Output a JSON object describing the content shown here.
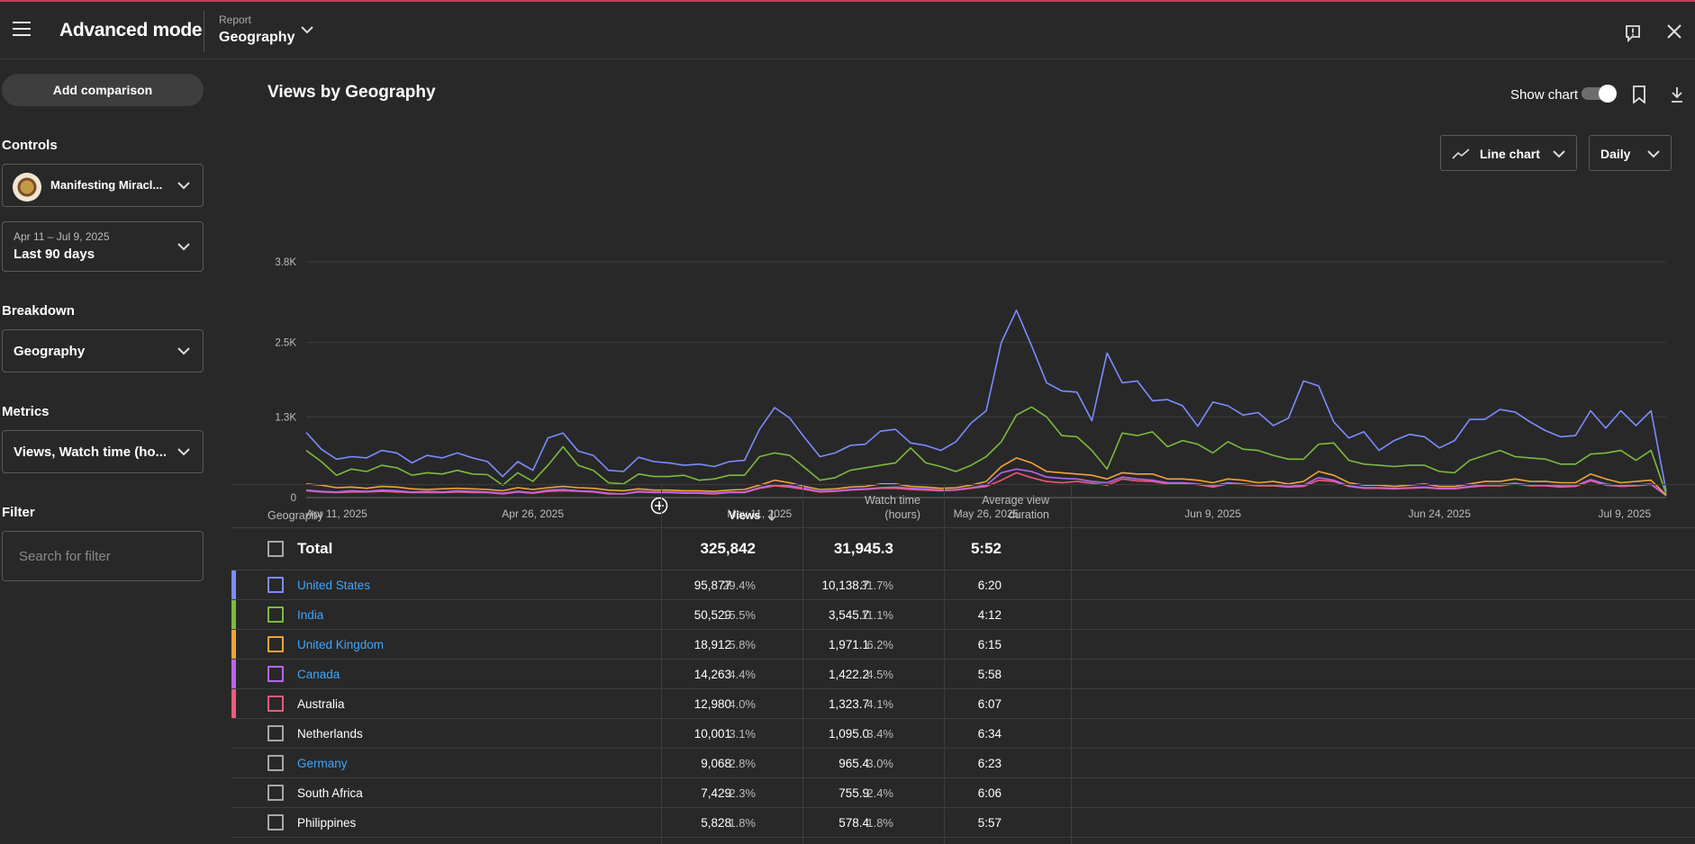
{
  "app": {
    "title": "Advanced mode",
    "report_caption": "Report",
    "report_value": "Geography"
  },
  "sidebar": {
    "add_comparison": "Add comparison",
    "controls_label": "Controls",
    "channel_name": "Manifesting Miracl...",
    "date_range_small": "Apr 11 – Jul 9, 2025",
    "date_range": "Last 90 days",
    "breakdown_label": "Breakdown",
    "breakdown_value": "Geography",
    "metrics_label": "Metrics",
    "metrics_value": "Views, Watch time (ho...",
    "filter_label": "Filter",
    "filter_placeholder": "Search for filter"
  },
  "main": {
    "title": "Views by Geography",
    "show_chart_label": "Show chart",
    "chart_type": "Line chart",
    "interval": "Daily"
  },
  "chart_data": {
    "type": "line",
    "y_ticks": [
      "3.8K",
      "2.5K",
      "1.3K",
      "0"
    ],
    "x_tick_labels": [
      "Apr 11, 2025",
      "Apr 26, 2025",
      "May 11, 2025",
      "May 26, 2025",
      "Jun 9, 2025",
      "Jun 24, 2025",
      "Jul 9, 2025"
    ],
    "ylim": [
      0,
      3800
    ],
    "grid": true,
    "series": [
      {
        "color": "#7b8cff",
        "values": [
          1050,
          780,
          620,
          660,
          640,
          760,
          720,
          560,
          680,
          640,
          720,
          640,
          580,
          340,
          580,
          440,
          960,
          1040,
          750,
          680,
          440,
          420,
          650,
          580,
          560,
          520,
          540,
          500,
          580,
          600,
          1100,
          1450,
          1280,
          960,
          660,
          720,
          840,
          860,
          1070,
          1100,
          880,
          840,
          760,
          900,
          1200,
          1400,
          2500,
          3020,
          2450,
          1850,
          1720,
          1700,
          1240,
          2330,
          1850,
          1880,
          1560,
          1580,
          1480,
          1150,
          1540,
          1480,
          1330,
          1370,
          1160,
          1280,
          1880,
          1800,
          1220,
          960,
          1060,
          760,
          920,
          1020,
          980,
          800,
          920,
          1260,
          1260,
          1420,
          1380,
          1220,
          1080,
          980,
          1000,
          1400,
          1120,
          1400,
          1160,
          1400,
          100
        ]
      },
      {
        "color": "#7cba3c",
        "values": [
          760,
          580,
          360,
          460,
          420,
          520,
          480,
          360,
          400,
          380,
          440,
          380,
          370,
          200,
          400,
          260,
          520,
          820,
          520,
          440,
          240,
          220,
          380,
          340,
          340,
          360,
          280,
          300,
          360,
          360,
          660,
          720,
          680,
          480,
          280,
          320,
          440,
          480,
          520,
          560,
          800,
          560,
          500,
          420,
          520,
          660,
          900,
          1330,
          1460,
          1300,
          1000,
          980,
          760,
          460,
          1040,
          1000,
          1060,
          820,
          920,
          860,
          720,
          900,
          780,
          760,
          680,
          620,
          620,
          860,
          880,
          600,
          540,
          520,
          500,
          520,
          520,
          420,
          400,
          600,
          680,
          760,
          660,
          640,
          620,
          540,
          540,
          700,
          720,
          760,
          600,
          760,
          60
        ]
      },
      {
        "color": "#f0a33a",
        "values": [
          220,
          200,
          160,
          170,
          150,
          180,
          170,
          140,
          130,
          140,
          150,
          140,
          130,
          110,
          160,
          130,
          160,
          180,
          160,
          150,
          120,
          110,
          140,
          120,
          120,
          110,
          110,
          100,
          120,
          130,
          200,
          280,
          240,
          180,
          130,
          140,
          170,
          180,
          220,
          220,
          180,
          170,
          150,
          160,
          200,
          260,
          500,
          640,
          560,
          420,
          400,
          380,
          360,
          300,
          400,
          380,
          380,
          300,
          300,
          280,
          240,
          300,
          280,
          240,
          260,
          220,
          260,
          420,
          360,
          240,
          200,
          200,
          180,
          200,
          220,
          180,
          180,
          220,
          260,
          260,
          300,
          260,
          260,
          240,
          240,
          380,
          300,
          240,
          260,
          280,
          40
        ]
      },
      {
        "color": "#b765f0",
        "values": [
          120,
          100,
          90,
          110,
          100,
          120,
          110,
          90,
          100,
          90,
          110,
          100,
          90,
          70,
          100,
          80,
          120,
          130,
          110,
          100,
          70,
          60,
          100,
          90,
          90,
          80,
          80,
          70,
          90,
          90,
          160,
          210,
          190,
          150,
          100,
          110,
          130,
          140,
          160,
          170,
          150,
          140,
          120,
          130,
          160,
          200,
          400,
          460,
          420,
          330,
          310,
          300,
          260,
          240,
          330,
          300,
          280,
          240,
          240,
          220,
          190,
          240,
          220,
          200,
          200,
          180,
          200,
          320,
          280,
          190,
          160,
          160,
          150,
          160,
          170,
          150,
          150,
          180,
          210,
          210,
          230,
          200,
          200,
          190,
          190,
          290,
          220,
          190,
          200,
          220,
          30
        ]
      },
      {
        "color": "#f2587a",
        "values": [
          110,
          90,
          80,
          90,
          90,
          100,
          90,
          80,
          80,
          80,
          90,
          80,
          80,
          60,
          90,
          70,
          100,
          110,
          100,
          90,
          60,
          60,
          90,
          80,
          80,
          70,
          70,
          60,
          80,
          80,
          150,
          190,
          170,
          130,
          90,
          100,
          120,
          130,
          150,
          150,
          130,
          120,
          110,
          120,
          150,
          180,
          280,
          400,
          320,
          260,
          240,
          260,
          230,
          200,
          300,
          270,
          260,
          220,
          220,
          210,
          170,
          220,
          210,
          190,
          190,
          170,
          180,
          280,
          260,
          180,
          150,
          150,
          140,
          150,
          160,
          140,
          140,
          170,
          190,
          190,
          220,
          190,
          190,
          170,
          180,
          270,
          200,
          180,
          190,
          210,
          30
        ]
      }
    ]
  },
  "table": {
    "headers": {
      "geography": "Geography",
      "views": "Views",
      "watch_time_1": "Watch time",
      "watch_time_2": "(hours)",
      "avg_1": "Average view",
      "avg_2": "duration"
    },
    "total": {
      "label": "Total",
      "views": "325,842",
      "watch": "31,945.3",
      "avg": "5:52"
    },
    "rows": [
      {
        "name": "United States",
        "views": "95,877",
        "views_pct": "29.4%",
        "watch": "10,138.7",
        "watch_pct": "31.7%",
        "avg": "6:20",
        "color": "#7b8cff",
        "checkbox_color": "#7b8cff",
        "link": true
      },
      {
        "name": "India",
        "views": "50,529",
        "views_pct": "15.5%",
        "watch": "3,545.7",
        "watch_pct": "11.1%",
        "avg": "4:12",
        "color": "#7cba3c",
        "checkbox_color": "#7cba3c",
        "link": true
      },
      {
        "name": "United Kingdom",
        "views": "18,912",
        "views_pct": "5.8%",
        "watch": "1,971.1",
        "watch_pct": "6.2%",
        "avg": "6:15",
        "color": "#f0a33a",
        "checkbox_color": "#f0a33a",
        "link": true
      },
      {
        "name": "Canada",
        "views": "14,263",
        "views_pct": "4.4%",
        "watch": "1,422.2",
        "watch_pct": "4.5%",
        "avg": "5:58",
        "color": "#b765f0",
        "checkbox_color": "#b765f0",
        "link": true
      },
      {
        "name": "Australia",
        "views": "12,980",
        "views_pct": "4.0%",
        "watch": "1,323.7",
        "watch_pct": "4.1%",
        "avg": "6:07",
        "color": "#f2587a",
        "checkbox_color": "#f2587a",
        "link": false
      },
      {
        "name": "Netherlands",
        "views": "10,001",
        "views_pct": "3.1%",
        "watch": "1,095.0",
        "watch_pct": "3.4%",
        "avg": "6:34",
        "color": "",
        "checkbox_color": "#a8a8a8",
        "link": false
      },
      {
        "name": "Germany",
        "views": "9,068",
        "views_pct": "2.8%",
        "watch": "965.4",
        "watch_pct": "3.0%",
        "avg": "6:23",
        "color": "",
        "checkbox_color": "#a8a8a8",
        "link": true
      },
      {
        "name": "South Africa",
        "views": "7,429",
        "views_pct": "2.3%",
        "watch": "755.9",
        "watch_pct": "2.4%",
        "avg": "6:06",
        "color": "",
        "checkbox_color": "#a8a8a8",
        "link": false
      },
      {
        "name": "Philippines",
        "views": "5,828",
        "views_pct": "1.8%",
        "watch": "578.4",
        "watch_pct": "1.8%",
        "avg": "5:57",
        "color": "",
        "checkbox_color": "#a8a8a8",
        "link": false
      }
    ]
  }
}
